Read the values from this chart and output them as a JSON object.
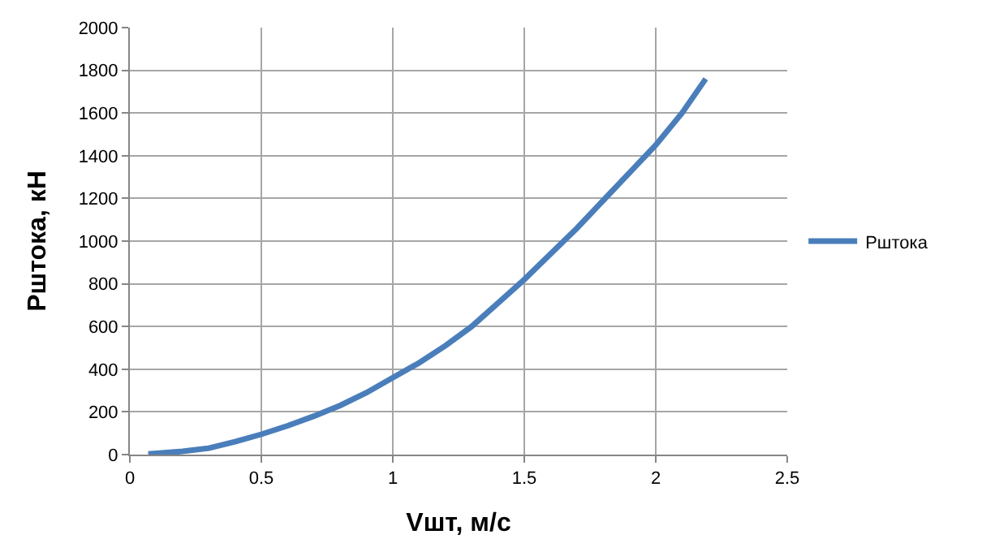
{
  "chart_data": {
    "type": "line",
    "xlabel": "Vшт, м/с",
    "ylabel": "Pштока, кН",
    "xlim": [
      0,
      2.5
    ],
    "xticks": [
      0,
      0.5,
      1,
      1.5,
      2,
      2.5
    ],
    "ylim": [
      0,
      2000
    ],
    "yticks": [
      0,
      200,
      400,
      600,
      800,
      1000,
      1200,
      1400,
      1600,
      1800,
      2000
    ],
    "grid": true,
    "legend": "right",
    "marker": "none",
    "line_style": "solid",
    "series": [
      {
        "name": "Pштока",
        "color": "#4a7ebb",
        "x": [
          0.07,
          0.2,
          0.3,
          0.4,
          0.5,
          0.6,
          0.7,
          0.8,
          0.9,
          1.0,
          1.1,
          1.2,
          1.3,
          1.4,
          1.5,
          1.6,
          1.7,
          1.8,
          1.9,
          2.0,
          2.1,
          2.19
        ],
        "values": [
          3,
          15,
          30,
          60,
          95,
          135,
          180,
          230,
          290,
          360,
          430,
          510,
          600,
          710,
          820,
          940,
          1060,
          1190,
          1320,
          1450,
          1600,
          1760
        ]
      }
    ]
  }
}
